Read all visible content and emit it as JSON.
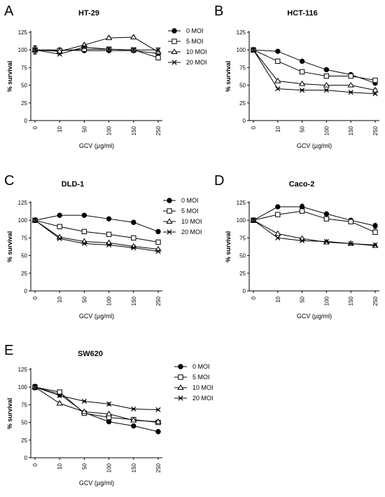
{
  "chart_data": [
    {
      "type": "line",
      "panel_letter": "A",
      "title": "HT-29",
      "xlabel": "GCV (µg/ml)",
      "ylabel": "% survival",
      "categories": [
        "0",
        "10",
        "50",
        "100",
        "150",
        "250"
      ],
      "ylim": [
        0,
        125
      ],
      "yticks": [
        "0",
        "25",
        "50",
        "75",
        "100",
        "125"
      ],
      "legend_position": "right",
      "series": [
        {
          "name": "0 MOI",
          "marker": "filled-circle",
          "values": [
            100,
            100,
            99,
            99,
            99,
            95
          ],
          "errors": [
            5,
            1,
            1,
            2,
            2,
            3
          ]
        },
        {
          "name": "5 MOI",
          "marker": "open-square",
          "values": [
            100,
            99,
            101,
            101,
            100,
            89
          ],
          "errors": [
            6,
            1,
            2,
            2,
            3,
            3
          ]
        },
        {
          "name": "10 MOI",
          "marker": "open-triangle",
          "values": [
            100,
            98,
            107,
            117,
            118,
            97
          ],
          "errors": [
            5,
            1,
            2,
            2,
            2,
            3
          ]
        },
        {
          "name": "20 MOI",
          "marker": "cross",
          "values": [
            100,
            94,
            104,
            101,
            100,
            100
          ],
          "errors": [
            5,
            1,
            2,
            2,
            2,
            3
          ]
        }
      ]
    },
    {
      "type": "line",
      "panel_letter": "B",
      "title": "HCT-116",
      "xlabel": "GCV (µg/ml)",
      "ylabel": "% survival",
      "categories": [
        "0",
        "10",
        "50",
        "100",
        "150",
        "250"
      ],
      "ylim": [
        0,
        125
      ],
      "yticks": [
        "0",
        "25",
        "50",
        "75",
        "100",
        "125"
      ],
      "legend_position": "none",
      "series": [
        {
          "name": "0 MOI",
          "marker": "filled-circle",
          "values": [
            100,
            98,
            84,
            72,
            65,
            53
          ],
          "errors": [
            3,
            1,
            1,
            1,
            2,
            2
          ]
        },
        {
          "name": "5 MOI",
          "marker": "open-square",
          "values": [
            100,
            84,
            69,
            63,
            63,
            57
          ],
          "errors": [
            3,
            1,
            1,
            1,
            2,
            2
          ]
        },
        {
          "name": "10 MOI",
          "marker": "open-triangle",
          "values": [
            100,
            56,
            52,
            50,
            50,
            43
          ],
          "errors": [
            3,
            1,
            1,
            1,
            1,
            2
          ]
        },
        {
          "name": "20 MOI",
          "marker": "cross",
          "values": [
            100,
            45,
            43,
            43,
            40,
            38
          ],
          "errors": [
            3,
            1,
            1,
            1,
            1,
            1
          ]
        }
      ]
    },
    {
      "type": "line",
      "panel_letter": "C",
      "title": "DLD-1",
      "xlabel": "GCV (µg/ml)",
      "ylabel": "% survival",
      "categories": [
        "0",
        "10",
        "50",
        "100",
        "150",
        "250"
      ],
      "ylim": [
        0,
        125
      ],
      "yticks": [
        "0",
        "25",
        "50",
        "75",
        "100",
        "125"
      ],
      "legend_position": "right",
      "series": [
        {
          "name": "0 MOI",
          "marker": "filled-circle",
          "values": [
            100,
            107,
            107,
            102,
            97,
            84
          ],
          "errors": [
            2,
            1,
            1,
            1,
            1,
            1
          ]
        },
        {
          "name": "5 MOI",
          "marker": "open-square",
          "values": [
            100,
            91,
            84,
            80,
            75,
            69
          ],
          "errors": [
            2,
            1,
            1,
            1,
            1,
            1
          ]
        },
        {
          "name": "10 MOI",
          "marker": "open-triangle",
          "values": [
            100,
            76,
            70,
            68,
            63,
            59
          ],
          "errors": [
            2,
            1,
            1,
            1,
            1,
            1
          ]
        },
        {
          "name": "20 MOI",
          "marker": "cross",
          "values": [
            100,
            74,
            67,
            65,
            61,
            56
          ],
          "errors": [
            2,
            1,
            1,
            1,
            1,
            1
          ]
        }
      ]
    },
    {
      "type": "line",
      "panel_letter": "D",
      "title": "Caco-2",
      "xlabel": "GCV (µg/ml)",
      "ylabel": "% survival",
      "categories": [
        "0",
        "10",
        "50",
        "100",
        "150",
        "250"
      ],
      "ylim": [
        0,
        125
      ],
      "yticks": [
        "0",
        "25",
        "50",
        "75",
        "100",
        "125"
      ],
      "legend_position": "none",
      "series": [
        {
          "name": "0 MOI",
          "marker": "filled-circle",
          "values": [
            100,
            119,
            119,
            109,
            100,
            92
          ],
          "errors": [
            2,
            2,
            4,
            2,
            2,
            4
          ]
        },
        {
          "name": "5 MOI",
          "marker": "open-square",
          "values": [
            100,
            108,
            113,
            102,
            98,
            83
          ],
          "errors": [
            2,
            2,
            3,
            2,
            2,
            3
          ]
        },
        {
          "name": "10 MOI",
          "marker": "open-triangle",
          "values": [
            100,
            81,
            74,
            69,
            67,
            64
          ],
          "errors": [
            2,
            1,
            1,
            1,
            1,
            1
          ]
        },
        {
          "name": "20 MOI",
          "marker": "cross",
          "values": [
            100,
            75,
            71,
            70,
            67,
            65
          ],
          "errors": [
            2,
            1,
            1,
            1,
            1,
            1
          ]
        }
      ]
    },
    {
      "type": "line",
      "panel_letter": "E",
      "title": "SW620",
      "xlabel": "GCV (µg/ml)",
      "ylabel": "% survival",
      "categories": [
        "0",
        "10",
        "50",
        "100",
        "150",
        "250"
      ],
      "ylim": [
        0,
        125
      ],
      "yticks": [
        "0",
        "25",
        "50",
        "75",
        "100",
        "125"
      ],
      "legend_position": "right",
      "series": [
        {
          "name": "0 MOI",
          "marker": "filled-circle",
          "values": [
            100,
            90,
            64,
            51,
            45,
            37
          ],
          "errors": [
            3,
            3,
            1,
            1,
            1,
            1
          ]
        },
        {
          "name": "5 MOI",
          "marker": "open-square",
          "values": [
            100,
            93,
            63,
            57,
            54,
            50
          ],
          "errors": [
            4,
            3,
            1,
            1,
            1,
            2
          ]
        },
        {
          "name": "10 MOI",
          "marker": "open-triangle",
          "values": [
            100,
            77,
            65,
            62,
            53,
            51
          ],
          "errors": [
            3,
            2,
            1,
            1,
            1,
            1
          ]
        },
        {
          "name": "20 MOI",
          "marker": "cross",
          "values": [
            100,
            88,
            80,
            76,
            69,
            68
          ],
          "errors": [
            3,
            2,
            1,
            2,
            1,
            1
          ]
        }
      ]
    }
  ]
}
